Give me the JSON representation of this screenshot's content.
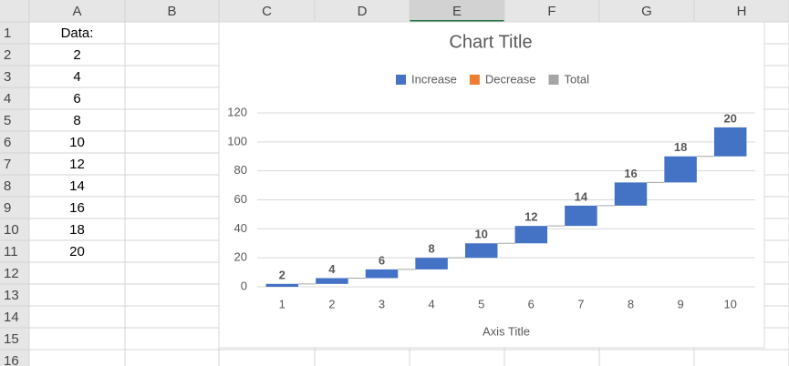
{
  "sheet": {
    "columns": [
      "A",
      "B",
      "C",
      "D",
      "E",
      "F",
      "G",
      "H"
    ],
    "rows": [
      1,
      2,
      3,
      4,
      5,
      6,
      7,
      8,
      9,
      10,
      11,
      12,
      13,
      14,
      15,
      16
    ],
    "column_a": [
      "Data:",
      2,
      4,
      6,
      8,
      10,
      12,
      14,
      16,
      18,
      20
    ]
  },
  "chart_data": {
    "type": "waterfall",
    "title": "Chart Title",
    "x_label": "Axis Title",
    "legend": [
      {
        "name": "Increase",
        "color": "#4472c4"
      },
      {
        "name": "Decrease",
        "color": "#ed7d31"
      },
      {
        "name": "Total",
        "color": "#a5a5a5"
      }
    ],
    "categories": [
      1,
      2,
      3,
      4,
      5,
      6,
      7,
      8,
      9,
      10
    ],
    "values": [
      2,
      4,
      6,
      8,
      10,
      12,
      14,
      16,
      18,
      20
    ],
    "color": "#4472c4",
    "ylim": [
      0,
      120
    ],
    "yticks": [
      0,
      20,
      40,
      60,
      80,
      100,
      120
    ],
    "grid": true
  }
}
